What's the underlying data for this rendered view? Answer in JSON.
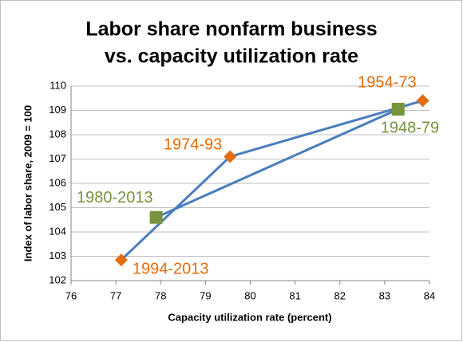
{
  "chart_data": {
    "type": "scatter",
    "title": [
      "Labor share nonfarm business",
      "vs. capacity utilization rate"
    ],
    "x_label": "Capacity utilization rate (percent)",
    "y_label": "Index of labor share, 2009 = 100",
    "xlim": [
      76,
      84
    ],
    "xticks": [
      76,
      77,
      78,
      79,
      80,
      81,
      82,
      83,
      84
    ],
    "ylim": [
      102,
      110
    ],
    "yticks": [
      102,
      103,
      104,
      105,
      106,
      107,
      108,
      109,
      110
    ],
    "grid": true,
    "line_color": "#4a7ebb",
    "series": [
      {
        "marker": "diamond",
        "color": "#e46c0a",
        "x": [
          77.12,
          79.55,
          83.85
        ],
        "values": [
          102.85,
          107.1,
          109.4
        ],
        "point_labels": [
          "1994-2013",
          "1974-93",
          "1954-73"
        ]
      },
      {
        "marker": "square",
        "color": "#77933c",
        "x": [
          77.9,
          83.3
        ],
        "values": [
          104.6,
          109.05
        ],
        "point_labels": [
          "1980-2013",
          "1948-79"
        ]
      }
    ]
  }
}
